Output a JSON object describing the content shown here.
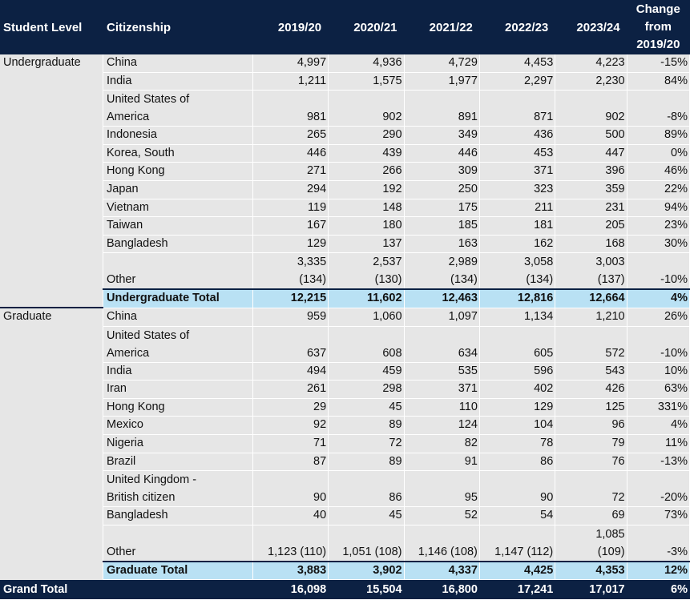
{
  "header": {
    "student_level": "Student Level",
    "citizenship": "Citizenship",
    "years": [
      "2019/20",
      "2020/21",
      "2021/22",
      "2022/23",
      "2023/24"
    ],
    "change_line1": "Change",
    "change_line2": "from",
    "change_line3": "2019/20"
  },
  "undergrad": {
    "level": "Undergraduate",
    "rows": [
      {
        "c1": "China",
        "c2": "",
        "v": [
          "4,997",
          "4,936",
          "4,729",
          "4,453",
          "4,223"
        ],
        "ch": "-15%"
      },
      {
        "c1": "India",
        "c2": "",
        "v": [
          "1,211",
          "1,575",
          "1,977",
          "2,297",
          "2,230"
        ],
        "ch": "84%"
      },
      {
        "c1": "United States of",
        "c2": "America",
        "v": [
          "981",
          "902",
          "891",
          "871",
          "902"
        ],
        "ch": "-8%"
      },
      {
        "c1": "Indonesia",
        "c2": "",
        "v": [
          "265",
          "290",
          "349",
          "436",
          "500"
        ],
        "ch": "89%"
      },
      {
        "c1": "Korea, South",
        "c2": "",
        "v": [
          "446",
          "439",
          "446",
          "453",
          "447"
        ],
        "ch": "0%"
      },
      {
        "c1": "Hong Kong",
        "c2": "",
        "v": [
          "271",
          "266",
          "309",
          "371",
          "396"
        ],
        "ch": "46%"
      },
      {
        "c1": "Japan",
        "c2": "",
        "v": [
          "294",
          "192",
          "250",
          "323",
          "359"
        ],
        "ch": "22%"
      },
      {
        "c1": "Vietnam",
        "c2": "",
        "v": [
          "119",
          "148",
          "175",
          "211",
          "231"
        ],
        "ch": "94%"
      },
      {
        "c1": "Taiwan",
        "c2": "",
        "v": [
          "167",
          "180",
          "185",
          "181",
          "205"
        ],
        "ch": "23%"
      },
      {
        "c1": "Bangladesh",
        "c2": "",
        "v": [
          "129",
          "137",
          "163",
          "162",
          "168"
        ],
        "ch": "30%"
      }
    ],
    "other": {
      "label": "Other",
      "top": [
        "3,335",
        "2,537",
        "2,989",
        "3,058",
        "3,003"
      ],
      "bottom": [
        "(134)",
        "(130)",
        "(134)",
        "(134)",
        "(137)"
      ],
      "ch": "-10%"
    },
    "total": {
      "label": "Undergraduate Total",
      "v": [
        "12,215",
        "11,602",
        "12,463",
        "12,816",
        "12,664"
      ],
      "ch": "4%"
    }
  },
  "grad": {
    "level": "Graduate",
    "rows": [
      {
        "c1": "China",
        "c2": "",
        "v": [
          "959",
          "1,060",
          "1,097",
          "1,134",
          "1,210"
        ],
        "ch": "26%"
      },
      {
        "c1": "United States of",
        "c2": "America",
        "v": [
          "637",
          "608",
          "634",
          "605",
          "572"
        ],
        "ch": "-10%"
      },
      {
        "c1": "India",
        "c2": "",
        "v": [
          "494",
          "459",
          "535",
          "596",
          "543"
        ],
        "ch": "10%"
      },
      {
        "c1": "Iran",
        "c2": "",
        "v": [
          "261",
          "298",
          "371",
          "402",
          "426"
        ],
        "ch": "63%"
      },
      {
        "c1": "Hong Kong",
        "c2": "",
        "v": [
          "29",
          "45",
          "110",
          "129",
          "125"
        ],
        "ch": "331%"
      },
      {
        "c1": "Mexico",
        "c2": "",
        "v": [
          "92",
          "89",
          "124",
          "104",
          "96"
        ],
        "ch": "4%"
      },
      {
        "c1": "Nigeria",
        "c2": "",
        "v": [
          "71",
          "72",
          "82",
          "78",
          "79"
        ],
        "ch": "11%"
      },
      {
        "c1": "Brazil",
        "c2": "",
        "v": [
          "87",
          "89",
          "91",
          "86",
          "76"
        ],
        "ch": "-13%"
      },
      {
        "c1": "United Kingdom -",
        "c2": "British citizen",
        "v": [
          "90",
          "86",
          "95",
          "90",
          "72"
        ],
        "ch": "-20%"
      },
      {
        "c1": "Bangladesh",
        "c2": "",
        "v": [
          "40",
          "45",
          "52",
          "54",
          "69"
        ],
        "ch": "73%"
      }
    ],
    "other": {
      "label": "Other",
      "top": [
        "",
        "",
        "",
        "",
        "1,085"
      ],
      "bottom": [
        "1,123 (110)",
        "1,051 (108)",
        "1,146 (108)",
        "1,147 (112)",
        "(109)"
      ],
      "ch": "-3%"
    },
    "total": {
      "label": "Graduate Total",
      "v": [
        "3,883",
        "3,902",
        "4,337",
        "4,425",
        "4,353"
      ],
      "ch": "12%"
    }
  },
  "grand_total": {
    "label": "Grand Total",
    "v": [
      "16,098",
      "15,504",
      "16,800",
      "17,241",
      "17,017"
    ],
    "ch": "6%"
  }
}
